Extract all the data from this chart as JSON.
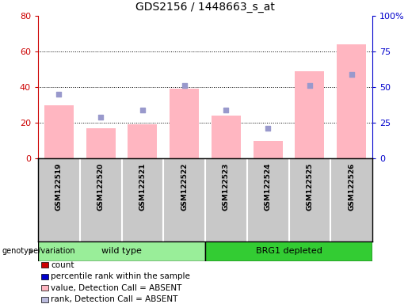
{
  "title": "GDS2156 / 1448663_s_at",
  "samples": [
    "GSM122519",
    "GSM122520",
    "GSM122521",
    "GSM122522",
    "GSM122523",
    "GSM122524",
    "GSM122525",
    "GSM122526"
  ],
  "bar_values": [
    30,
    17,
    19,
    39,
    24,
    10,
    49,
    64
  ],
  "dot_values": [
    36,
    23,
    27,
    41,
    27,
    17,
    41,
    47
  ],
  "ylim_left": [
    0,
    80
  ],
  "ylim_right": [
    0,
    100
  ],
  "yticks_left": [
    0,
    20,
    40,
    60,
    80
  ],
  "ytick_labels_left": [
    "0",
    "20",
    "40",
    "60",
    "80"
  ],
  "ytick_labels_right": [
    "0",
    "25",
    "50",
    "75",
    "100%"
  ],
  "grid_values": [
    20,
    40,
    60
  ],
  "bar_color": "#FFB6C1",
  "dot_color": "#9999CC",
  "left_axis_color": "#CC0000",
  "right_axis_color": "#0000CC",
  "groups": [
    {
      "label": "wild type",
      "start": 0,
      "end": 4,
      "color": "#99EE99"
    },
    {
      "label": "BRG1 depleted",
      "start": 4,
      "end": 8,
      "color": "#33CC33"
    }
  ],
  "group_label": "genotype/variation",
  "legend_items": [
    {
      "color": "#CC0000",
      "label": "count"
    },
    {
      "color": "#0000CC",
      "label": "percentile rank within the sample"
    },
    {
      "color": "#FFB6C1",
      "label": "value, Detection Call = ABSENT"
    },
    {
      "color": "#BBBBDD",
      "label": "rank, Detection Call = ABSENT"
    }
  ],
  "bg_color": "#C8C8C8",
  "plot_bg_color": "#FFFFFF"
}
